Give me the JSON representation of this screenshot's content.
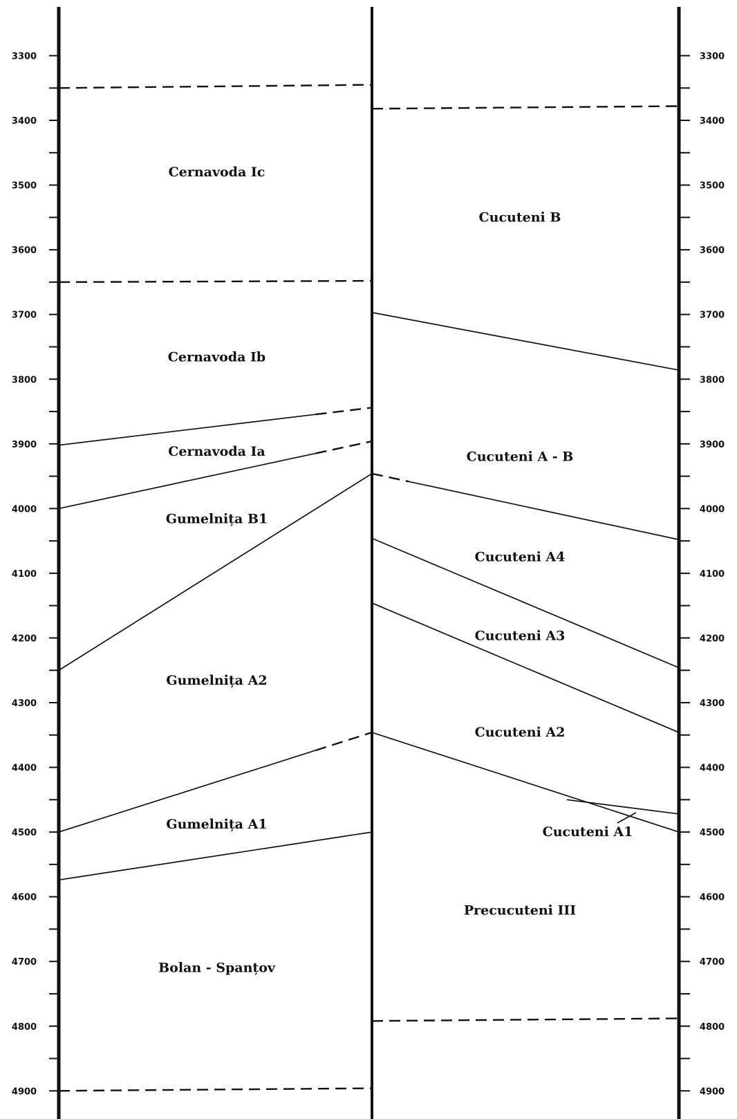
{
  "chart_data": {
    "type": "diagram",
    "y_axis_left": {
      "ticks": [
        3300,
        3400,
        3500,
        3600,
        3700,
        3800,
        3900,
        4000,
        4100,
        4200,
        4300,
        4400,
        4500,
        4600,
        4700,
        4800,
        4900
      ],
      "tick_labels": [
        "3300",
        "3400",
        "3500",
        "3600",
        "3700",
        "3800",
        "3900",
        "4000",
        "4100",
        "4200",
        "4300",
        "4400",
        "4500",
        "4600",
        "4700",
        "4800",
        "4900"
      ],
      "range": [
        3300,
        4900
      ]
    },
    "y_axis_right": {
      "ticks": [
        3300,
        3400,
        3500,
        3600,
        3700,
        3800,
        3900,
        4000,
        4100,
        4200,
        4300,
        4400,
        4500,
        4600,
        4700,
        4800,
        4900
      ],
      "tick_labels": [
        "3300",
        "3400",
        "3500",
        "3600",
        "3700",
        "3800",
        "3900",
        "4000",
        "4100",
        "4200",
        "4300",
        "4400",
        "4500",
        "4600",
        "4700",
        "4800",
        "4900"
      ],
      "range": [
        3300,
        4900
      ]
    },
    "left_column": {
      "periods": [
        {
          "name": "Cernavoda Ic",
          "label_at": 3480
        },
        {
          "name": "Cernavoda Ib",
          "label_at": 3766
        },
        {
          "name": "Cernavoda Ia",
          "label_at": 3912
        },
        {
          "name": "Gumelnița B1",
          "label_at": 4016
        },
        {
          "name": "Gumelnița A2",
          "label_at": 4266
        },
        {
          "name": "Gumelnița A1",
          "label_at": 4488
        },
        {
          "name": "Bolan - Spanțov",
          "label_at": 4710
        }
      ],
      "boundaries": [
        {
          "from": 3350,
          "to": 3345,
          "style": "dashed"
        },
        {
          "from": 3650,
          "to": 3648,
          "style": "dashed"
        },
        {
          "from": 3902,
          "to": 3844,
          "style": "mixed"
        },
        {
          "from": 4000,
          "to": 3896,
          "style": "mixed"
        },
        {
          "from": 4250,
          "to": 3946,
          "style": "solid"
        },
        {
          "from": 4500,
          "to": 4346,
          "style": "mixed"
        },
        {
          "from": 4574,
          "to": 4500,
          "style": "solid"
        },
        {
          "from": 4900,
          "to": 4896,
          "style": "dashed"
        }
      ]
    },
    "right_column": {
      "periods": [
        {
          "name": "Cucuteni B",
          "label_at": 3550
        },
        {
          "name": "Cucuteni A - B",
          "label_at": 3920
        },
        {
          "name": "Cucuteni A4",
          "label_at": 4075
        },
        {
          "name": "Cucuteni A3",
          "label_at": 4197
        },
        {
          "name": "Cucuteni A2",
          "label_at": 4346
        },
        {
          "name": "Cucuteni A1",
          "label_at": 4500
        },
        {
          "name": "Precucuteni III",
          "label_at": 4621
        }
      ],
      "boundaries": [
        {
          "from": 3382,
          "to": 3378,
          "style": "dashed"
        },
        {
          "from": 3697,
          "to": 3786,
          "style": "solid"
        },
        {
          "from": 3946,
          "to": 4048,
          "style": "mixed"
        },
        {
          "from": 4046,
          "to": 4246,
          "style": "solid"
        },
        {
          "from": 4146,
          "to": 4346,
          "style": "solid"
        },
        {
          "from": 4346,
          "to": 4500,
          "style": "solid"
        },
        {
          "from": 4792,
          "to": 4788,
          "style": "dashed"
        }
      ],
      "a1_bracket": true
    }
  }
}
